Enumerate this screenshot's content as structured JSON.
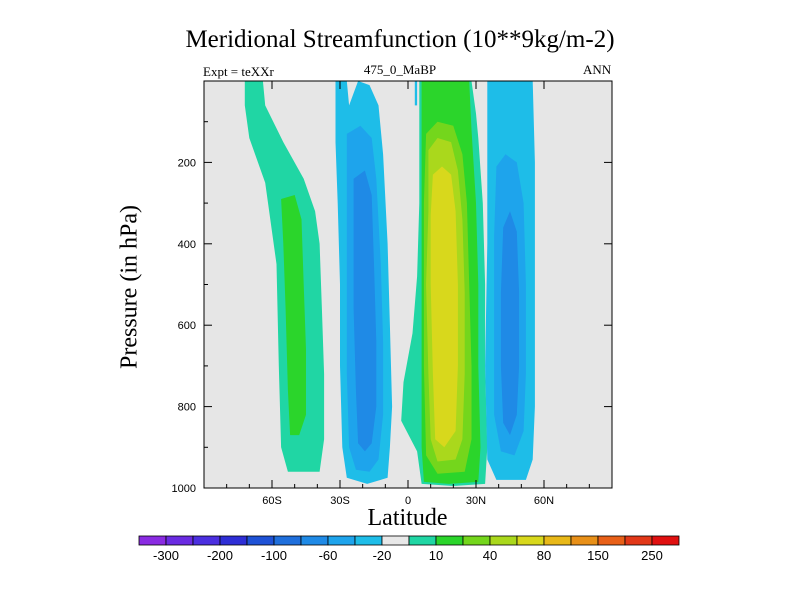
{
  "chart_data": {
    "type": "contour",
    "title": "Meridional Streamfunction (10**9kg/m-2)",
    "left_label": "Expt = teXXr",
    "center_label": "475_0_MaBP",
    "right_label": "ANN",
    "xlabel": "Latitude",
    "ylabel": "Pressure (in hPa)",
    "xlim": [
      -90,
      90
    ],
    "ylim": [
      1000,
      0
    ],
    "x_ticks": [
      {
        "value": -60,
        "label": "60S"
      },
      {
        "value": -30,
        "label": "30S"
      },
      {
        "value": 0,
        "label": "0"
      },
      {
        "value": 30,
        "label": "30N"
      },
      {
        "value": 60,
        "label": "60N"
      }
    ],
    "y_ticks": [
      {
        "value": 200,
        "label": "200"
      },
      {
        "value": 400,
        "label": "400"
      },
      {
        "value": 600,
        "label": "600"
      },
      {
        "value": 800,
        "label": "800"
      },
      {
        "value": 1000,
        "label": "1000"
      }
    ],
    "colorbar": {
      "colors": [
        "#8a2be2",
        "#6a2be2",
        "#4b2fe0",
        "#2e2ed6",
        "#1e52d6",
        "#1f6fdc",
        "#1f8ae6",
        "#1ea4ec",
        "#1ebde8",
        "#e8e8e8",
        "#20d6a4",
        "#2bd52b",
        "#74d61c",
        "#aad81c",
        "#d8d81c",
        "#e8b818",
        "#e89018",
        "#e86018",
        "#e23818",
        "#e01010"
      ],
      "tick_labels": [
        {
          "index": 1,
          "label": "-300"
        },
        {
          "index": 3,
          "label": "-200"
        },
        {
          "index": 5,
          "label": "-100"
        },
        {
          "index": 7,
          "label": "-60"
        },
        {
          "index": 9,
          "label": "-20"
        },
        {
          "index": 11,
          "label": "10"
        },
        {
          "index": 13,
          "label": "40"
        },
        {
          "index": 15,
          "label": "80"
        },
        {
          "index": 17,
          "label": "150"
        },
        {
          "index": 19,
          "label": "250"
        }
      ]
    },
    "cells": [
      {
        "name": "southern-polar-cell",
        "sign": "positive",
        "lat_range": [
          -76,
          -31
        ],
        "p_top": 0,
        "p_bottom": 960,
        "core_lat": -49,
        "core_p": 600,
        "peak_level": "10-40"
      },
      {
        "name": "southern-ferrel-cell",
        "sign": "negative",
        "lat_range": [
          -32,
          -3
        ],
        "p_top": 0,
        "p_bottom": 990,
        "core_lat": -20,
        "core_p": 550,
        "peak_level": "-60 to -20"
      },
      {
        "name": "hadley-cell",
        "sign": "positive",
        "lat_range": [
          4,
          35
        ],
        "p_top": 0,
        "p_bottom": 990,
        "core_lat": 15,
        "core_p": 500,
        "peak_level": "80-150"
      },
      {
        "name": "northern-ferrel-cell",
        "sign": "negative",
        "lat_range": [
          34,
          56
        ],
        "p_top": 0,
        "p_bottom": 980,
        "core_lat": 46,
        "core_p": 600,
        "peak_level": "-60 to -20"
      }
    ]
  }
}
